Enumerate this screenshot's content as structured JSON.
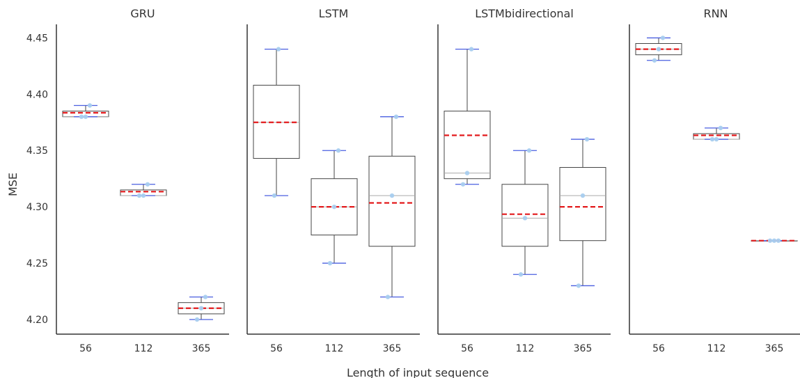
{
  "chart_data": {
    "type": "box",
    "xlabel": "Length of input sequence",
    "ylabel": "MSE",
    "ylim": [
      4.187,
      4.462
    ],
    "yticks": [
      4.2,
      4.25,
      4.3,
      4.35,
      4.4,
      4.45
    ],
    "ytick_labels": [
      "4.20",
      "4.25",
      "4.30",
      "4.35",
      "4.40",
      "4.45"
    ],
    "categories": [
      "56",
      "112",
      "365"
    ],
    "colors": {
      "box_edge": "#444444",
      "whisker_cap": "#4a5fe0",
      "point": "#a8cdef",
      "mean_line": "#e31a1c",
      "median_line": "#aaaaaa",
      "axis": "#333333"
    },
    "panels": [
      {
        "title": "GRU",
        "boxes": [
          {
            "category": "56",
            "min": 4.38,
            "q1": 4.38,
            "median": 4.38,
            "q3": 4.385,
            "max": 4.39,
            "mean": 4.3835,
            "points": [
              4.38,
              4.38,
              4.39
            ]
          },
          {
            "category": "112",
            "min": 4.31,
            "q1": 4.31,
            "median": 4.31,
            "q3": 4.315,
            "max": 4.32,
            "mean": 4.3135,
            "points": [
              4.31,
              4.31,
              4.32
            ]
          },
          {
            "category": "365",
            "min": 4.2,
            "q1": 4.205,
            "median": 4.21,
            "q3": 4.215,
            "max": 4.22,
            "mean": 4.21,
            "points": [
              4.2,
              4.21,
              4.22
            ]
          }
        ]
      },
      {
        "title": "LSTM",
        "boxes": [
          {
            "category": "56",
            "min": 4.31,
            "q1": 4.343,
            "median": 4.375,
            "q3": 4.408,
            "max": 4.44,
            "mean": 4.375,
            "points": [
              4.31,
              4.44
            ]
          },
          {
            "category": "112",
            "min": 4.25,
            "q1": 4.275,
            "median": 4.3,
            "q3": 4.325,
            "max": 4.35,
            "mean": 4.3,
            "points": [
              4.25,
              4.3,
              4.35
            ]
          },
          {
            "category": "365",
            "min": 4.22,
            "q1": 4.265,
            "median": 4.31,
            "q3": 4.345,
            "max": 4.38,
            "mean": 4.3035,
            "points": [
              4.22,
              4.31,
              4.38
            ]
          }
        ]
      },
      {
        "title": "LSTMbidirectional",
        "boxes": [
          {
            "category": "56",
            "min": 4.32,
            "q1": 4.325,
            "median": 4.33,
            "q3": 4.385,
            "max": 4.44,
            "mean": 4.3635,
            "points": [
              4.32,
              4.33,
              4.44
            ]
          },
          {
            "category": "112",
            "min": 4.24,
            "q1": 4.265,
            "median": 4.29,
            "q3": 4.32,
            "max": 4.35,
            "mean": 4.2935,
            "points": [
              4.24,
              4.29,
              4.35
            ]
          },
          {
            "category": "365",
            "min": 4.23,
            "q1": 4.27,
            "median": 4.31,
            "q3": 4.335,
            "max": 4.36,
            "mean": 4.3,
            "points": [
              4.23,
              4.31,
              4.36
            ]
          }
        ]
      },
      {
        "title": "RNN",
        "boxes": [
          {
            "category": "56",
            "min": 4.43,
            "q1": 4.435,
            "median": 4.44,
            "q3": 4.445,
            "max": 4.45,
            "mean": 4.44,
            "points": [
              4.43,
              4.44,
              4.45
            ]
          },
          {
            "category": "112",
            "min": 4.36,
            "q1": 4.36,
            "median": 4.36,
            "q3": 4.365,
            "max": 4.37,
            "mean": 4.3635,
            "points": [
              4.36,
              4.36,
              4.37
            ]
          },
          {
            "category": "365",
            "min": 4.27,
            "q1": 4.27,
            "median": 4.27,
            "q3": 4.27,
            "max": 4.27,
            "mean": 4.27,
            "points": [
              4.27,
              4.27,
              4.27
            ]
          }
        ]
      }
    ]
  }
}
